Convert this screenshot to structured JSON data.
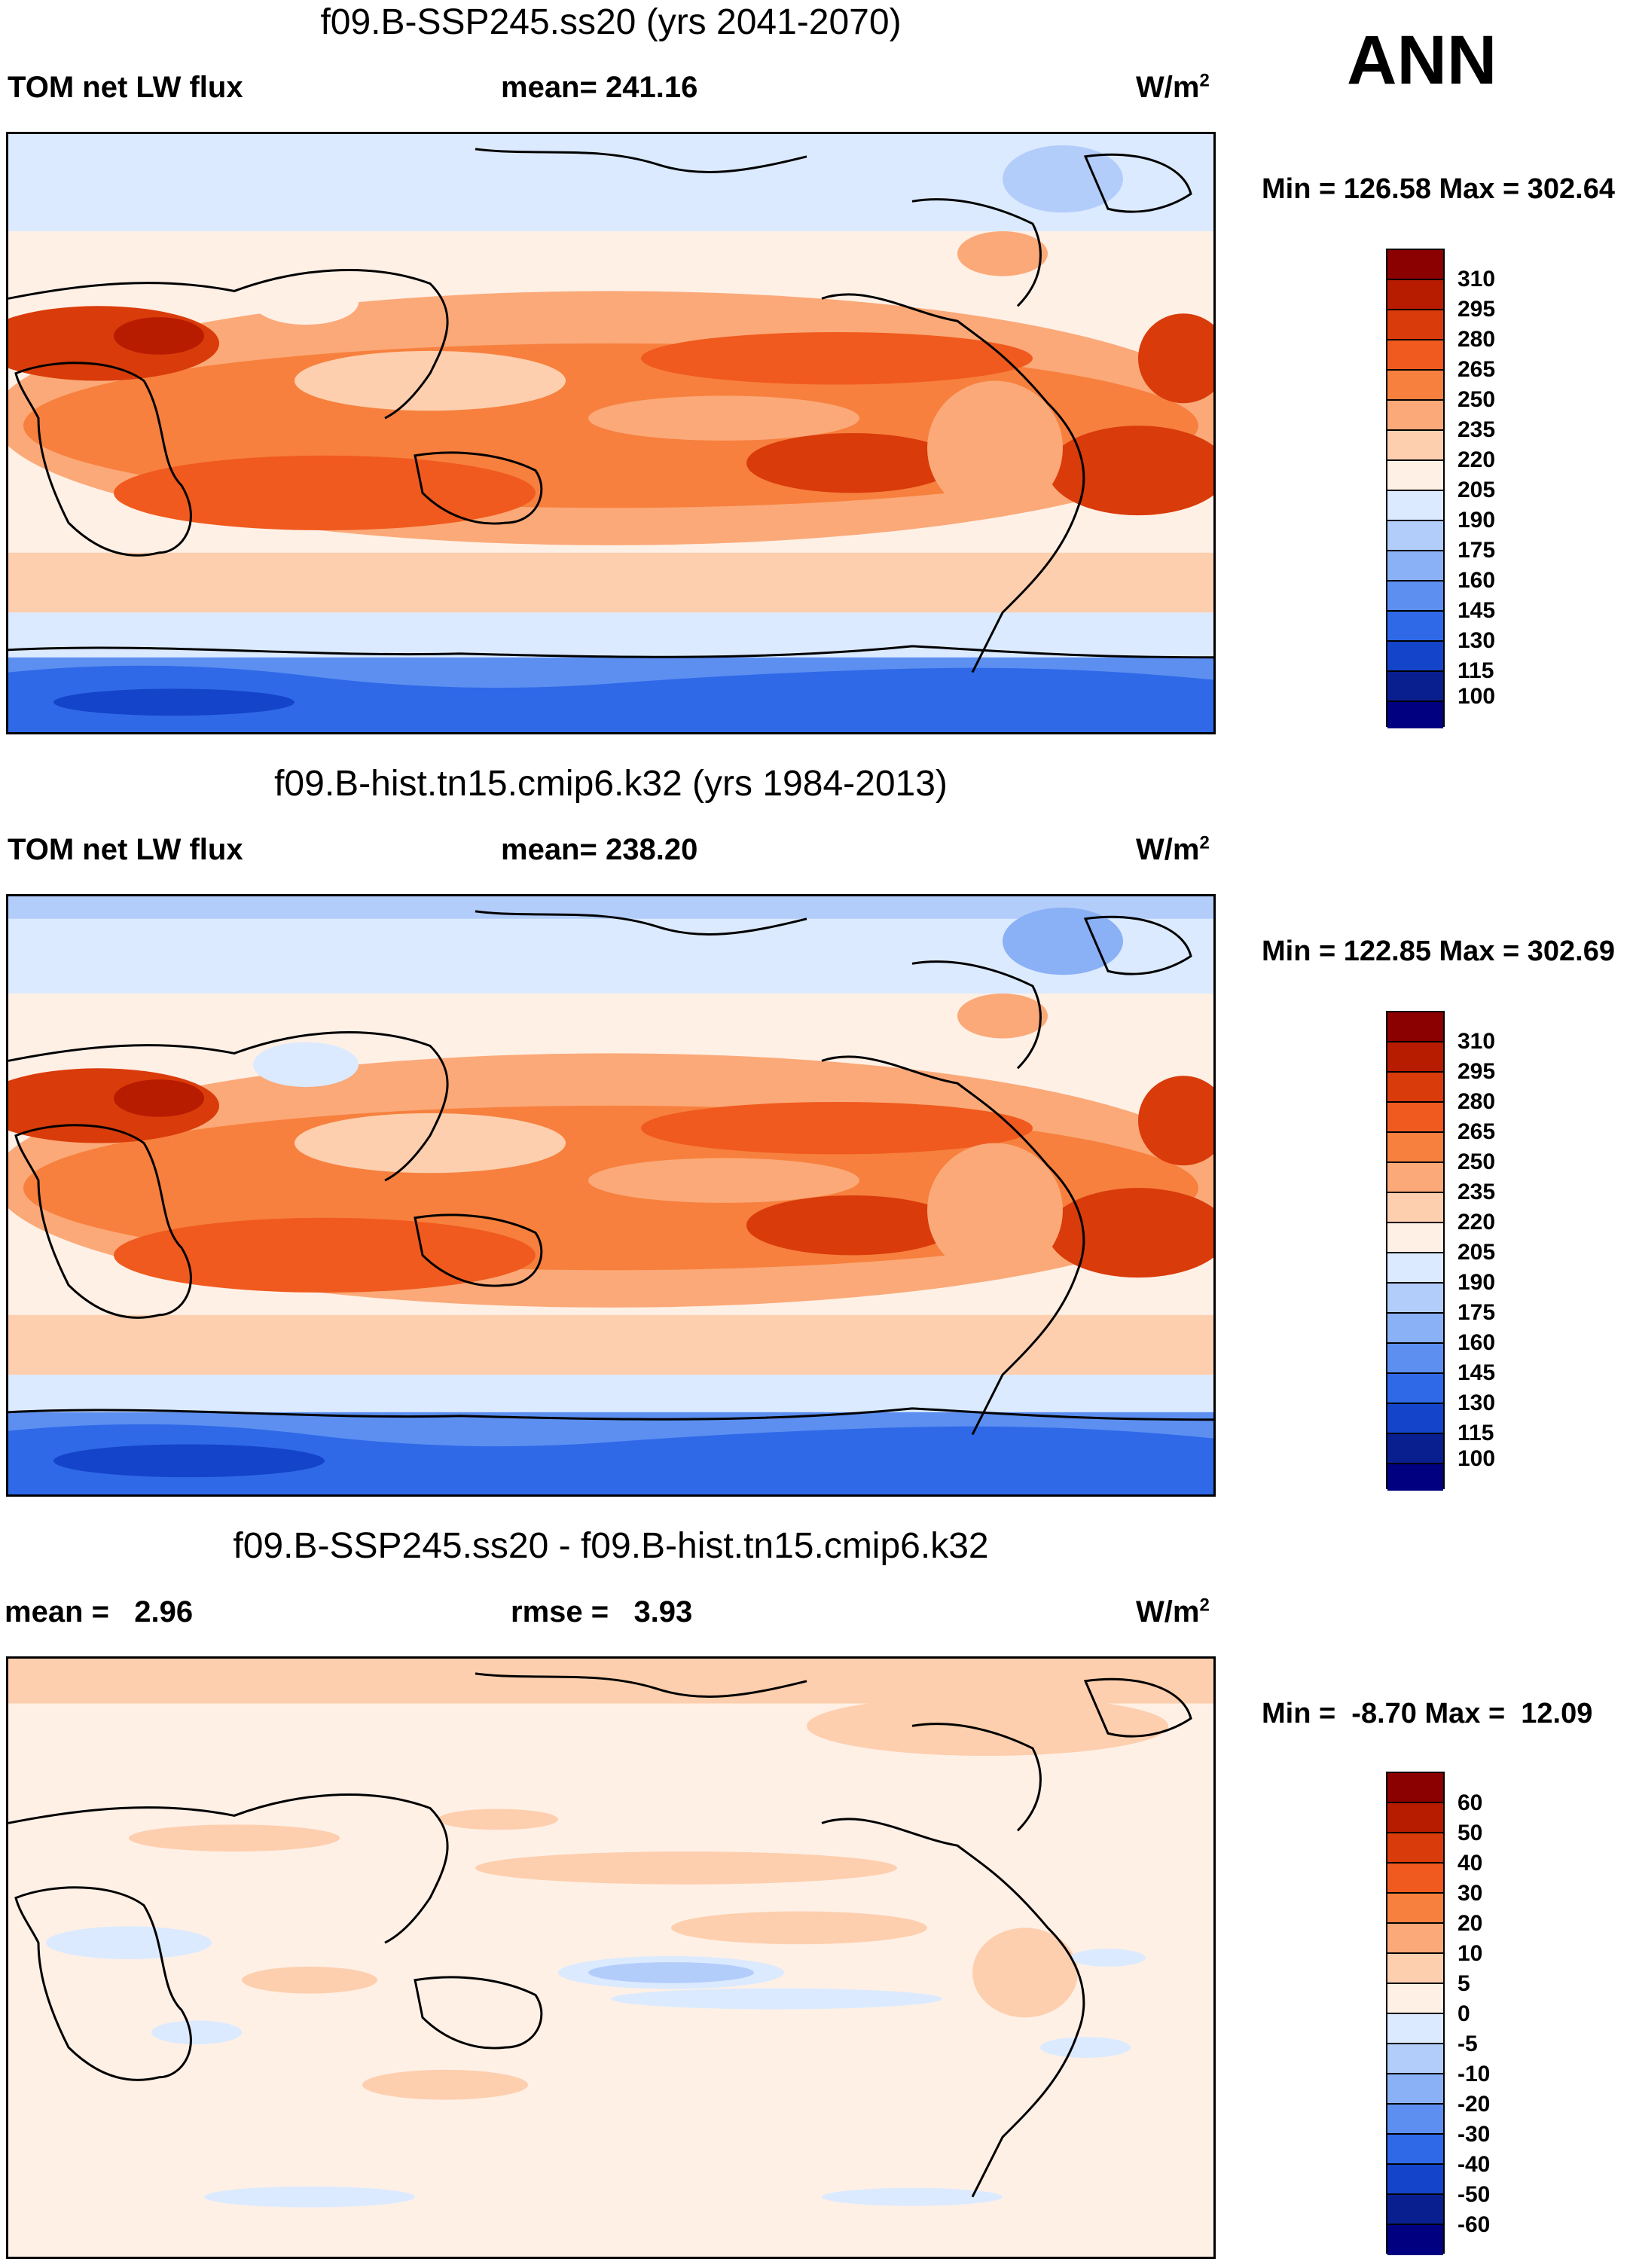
{
  "season": "ANN",
  "panels": [
    {
      "title": "f09.B-SSP245.ss20 (yrs 2041-2070)",
      "left_label": "TOM net LW flux",
      "center_label": "mean= 241.16",
      "units": "W/m",
      "units_sup": "2",
      "minmax": "Min = 126.58 Max = 302.64",
      "colorbar_ticks": [
        "310",
        "295",
        "280",
        "265",
        "250",
        "235",
        "220",
        "205",
        "190",
        "175",
        "160",
        "145",
        "130",
        "115",
        "100"
      ],
      "colorbar_colors": [
        "#8b0000",
        "#b71c00",
        "#d93b0a",
        "#f05a1e",
        "#f7803e",
        "#fba978",
        "#fdcfae",
        "#fff0e6",
        "#dbeaff",
        "#b3cdfb",
        "#8ab0f5",
        "#5c8ff0",
        "#2f69e8",
        "#1444c9",
        "#0a1f8f",
        "#000080"
      ]
    },
    {
      "title": "f09.B-hist.tn15.cmip6.k32 (yrs 1984-2013)",
      "left_label": "TOM net LW flux",
      "center_label": "mean= 238.20",
      "units": "W/m",
      "units_sup": "2",
      "minmax": "Min = 122.85 Max = 302.69",
      "colorbar_ticks": [
        "310",
        "295",
        "280",
        "265",
        "250",
        "235",
        "220",
        "205",
        "190",
        "175",
        "160",
        "145",
        "130",
        "115",
        "100"
      ],
      "colorbar_colors": [
        "#8b0000",
        "#b71c00",
        "#d93b0a",
        "#f05a1e",
        "#f7803e",
        "#fba978",
        "#fdcfae",
        "#fff0e6",
        "#dbeaff",
        "#b3cdfb",
        "#8ab0f5",
        "#5c8ff0",
        "#2f69e8",
        "#1444c9",
        "#0a1f8f",
        "#000080"
      ]
    },
    {
      "title": "f09.B-SSP245.ss20 - f09.B-hist.tn15.cmip6.k32",
      "left_label": "mean =   2.96",
      "center_label": "rmse =   3.93",
      "units": "W/m",
      "units_sup": "2",
      "minmax": "Min =  -8.70 Max =  12.09",
      "colorbar_ticks": [
        "60",
        "50",
        "40",
        "30",
        "20",
        "10",
        "5",
        "0",
        "-5",
        "-10",
        "-20",
        "-30",
        "-40",
        "-50",
        "-60"
      ],
      "colorbar_colors": [
        "#8b0000",
        "#b71c00",
        "#d93b0a",
        "#f05a1e",
        "#f7803e",
        "#fba978",
        "#fdcfae",
        "#fff0e6",
        "#dbeaff",
        "#b3cdfb",
        "#8ab0f5",
        "#5c8ff0",
        "#2f69e8",
        "#1444c9",
        "#0a1f8f",
        "#000080"
      ]
    }
  ]
}
